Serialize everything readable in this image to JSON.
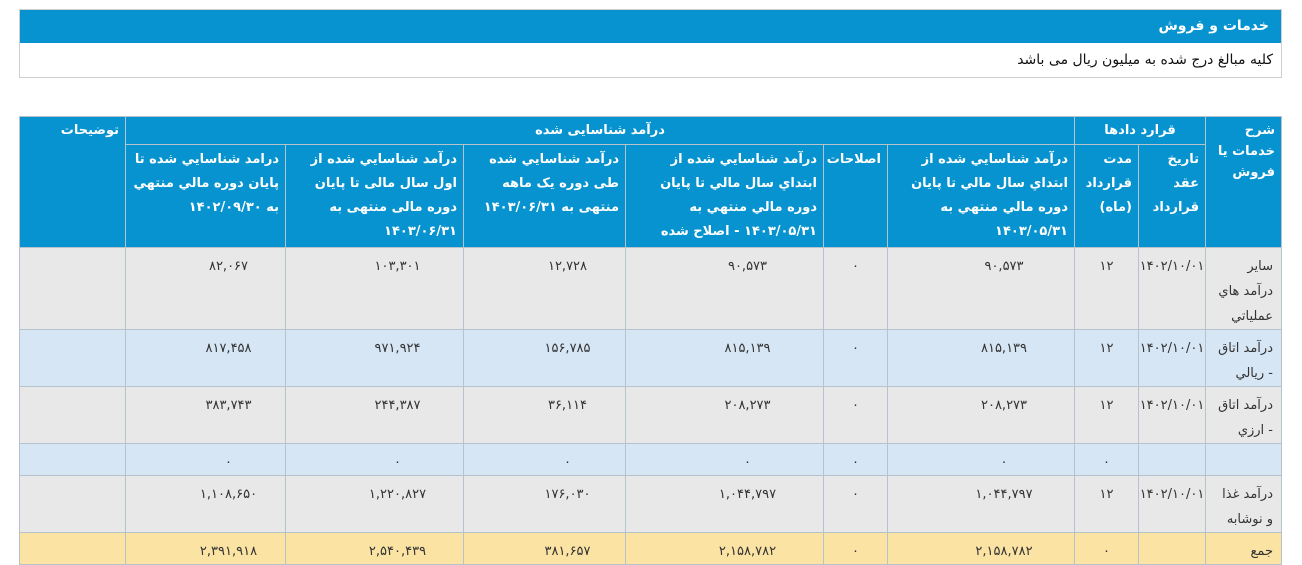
{
  "panel": {
    "title": "خدمات و فروش",
    "note": "کلیه مبالغ درج شده به میلیون ریال می باشد"
  },
  "table": {
    "headers": {
      "service": "شرح خدمات یا فروش",
      "contracts": "قرارد دادها",
      "contract_date": "تاریخ عقد قرارداد",
      "contract_duration": "مدت قرارداد (ماه)",
      "recognized_revenue": "درآمد شناسایی شده",
      "rev_start_to_end": "درآمد شناسايي شده از ابتداي سال مالي تا پايان دوره مالي منتهي به ۱۴۰۳/۰۵/۳۱",
      "adjustments": "اصلاحات",
      "rev_corrected": "درآمد شناسايي شده از ابتداي سال مالي تا پايان دوره مالي منتهي به ۱۴۰۳/۰۵/۳۱ - اصلاح شده",
      "rev_one_month": "درآمد شناسايي شده طی دوره یک ماهه منتهی به ۱۴۰۳/۰۶/۳۱",
      "rev_year_to_date": "درآمد شناسايي شده از اول سال مالی تا پایان دوره مالی منتهی به ۱۴۰۳/۰۶/۳۱",
      "rev_to_end": "درامد شناسايي شده تا پايان دوره مالي منتهي به ۱۴۰۲/۰۹/۳۰",
      "notes": "توضیحات"
    },
    "rows": [
      {
        "service": "ساير درآمد هاي عملياتي",
        "date": "۱۴۰۲/۱۰/۰۱",
        "duration": "۱۲",
        "rev_start": "۹۰,۵۷۳",
        "adj": "۰",
        "rev_corr": "۹۰,۵۷۳",
        "rev_month": "۱۲,۷۲۸",
        "rev_ytd": "۱۰۳,۳۰۱",
        "rev_end": "۸۲,۰۶۷",
        "notes": ""
      },
      {
        "service": "درآمد اتاق - ريالي",
        "date": "۱۴۰۲/۱۰/۰۱",
        "duration": "۱۲",
        "rev_start": "۸۱۵,۱۳۹",
        "adj": "۰",
        "rev_corr": "۸۱۵,۱۳۹",
        "rev_month": "۱۵۶,۷۸۵",
        "rev_ytd": "۹۷۱,۹۲۴",
        "rev_end": "۸۱۷,۴۵۸",
        "notes": ""
      },
      {
        "service": "درآمد اتاق - ارزي",
        "date": "۱۴۰۲/۱۰/۰۱",
        "duration": "۱۲",
        "rev_start": "۲۰۸,۲۷۳",
        "adj": "۰",
        "rev_corr": "۲۰۸,۲۷۳",
        "rev_month": "۳۶,۱۱۴",
        "rev_ytd": "۲۴۴,۳۸۷",
        "rev_end": "۳۸۳,۷۴۳",
        "notes": ""
      },
      {
        "service": "",
        "date": "",
        "duration": "۰",
        "rev_start": "۰",
        "adj": "۰",
        "rev_corr": "۰",
        "rev_month": "۰",
        "rev_ytd": "۰",
        "rev_end": "۰",
        "notes": ""
      },
      {
        "service": "درآمد غذا و نوشابه",
        "date": "۱۴۰۲/۱۰/۰۱",
        "duration": "۱۲",
        "rev_start": "۱,۰۴۴,۷۹۷",
        "adj": "۰",
        "rev_corr": "۱,۰۴۴,۷۹۷",
        "rev_month": "۱۷۶,۰۳۰",
        "rev_ytd": "۱,۲۲۰,۸۲۷",
        "rev_end": "۱,۱۰۸,۶۵۰",
        "notes": ""
      }
    ],
    "total": {
      "label": "جمع",
      "date": "",
      "duration": "۰",
      "rev_start": "۲,۱۵۸,۷۸۲",
      "adj": "۰",
      "rev_corr": "۲,۱۵۸,۷۸۲",
      "rev_month": "۳۸۱,۶۵۷",
      "rev_ytd": "۲,۵۴۰,۴۳۹",
      "rev_end": "۲,۳۹۱,۹۱۸",
      "notes": ""
    }
  }
}
